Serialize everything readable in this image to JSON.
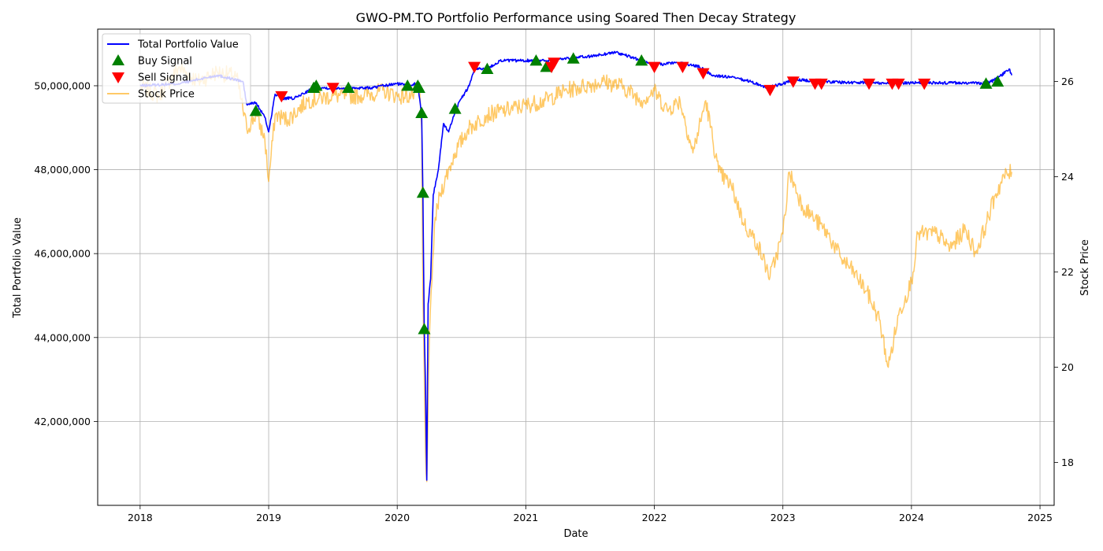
{
  "chart_data": {
    "type": "line",
    "title": "GWO-PM.TO Portfolio Performance using Soared Then Decay Strategy",
    "xlabel": "Date",
    "ylabel": "Total Portfolio Value",
    "ylabel_right": "Stock Price",
    "xlim": [
      2017.67,
      2025.11
    ],
    "ylim_left": [
      40000000,
      51350000
    ],
    "ylim_right": [
      17.1,
      27.1
    ],
    "x_ticks": [
      2018,
      2019,
      2020,
      2021,
      2022,
      2023,
      2024,
      2025
    ],
    "x_tick_labels": [
      "2018",
      "2019",
      "2020",
      "2021",
      "2022",
      "2023",
      "2024",
      "2025"
    ],
    "y_left_ticks": [
      42000000,
      44000000,
      46000000,
      48000000,
      50000000
    ],
    "y_left_tick_labels": [
      "42,000,000",
      "44,000,000",
      "46,000,000",
      "48,000,000",
      "50,000,000"
    ],
    "y_right_ticks": [
      18,
      20,
      22,
      24,
      26
    ],
    "y_right_tick_labels": [
      "18",
      "20",
      "22",
      "24",
      "26"
    ],
    "grid": true,
    "legend_position": "top-left",
    "colors": {
      "portfolio": "#0000ff",
      "price": "#ffa500",
      "buy": "#008000",
      "sell": "#ff0000"
    },
    "series": [
      {
        "name": "Total Portfolio Value",
        "axis": "left",
        "color": "#0000ff",
        "points": [
          [
            2018.0,
            50000000
          ],
          [
            2018.3,
            50050000
          ],
          [
            2018.6,
            50250000
          ],
          [
            2018.8,
            50100000
          ],
          [
            2018.83,
            49550000
          ],
          [
            2018.9,
            49600000
          ],
          [
            2018.97,
            49250000
          ],
          [
            2019.0,
            48900000
          ],
          [
            2019.05,
            49800000
          ],
          [
            2019.1,
            49700000
          ],
          [
            2019.2,
            49700000
          ],
          [
            2019.35,
            49950000
          ],
          [
            2019.5,
            49950000
          ],
          [
            2019.6,
            49950000
          ],
          [
            2019.8,
            49950000
          ],
          [
            2019.9,
            50000000
          ],
          [
            2020.0,
            50050000
          ],
          [
            2020.08,
            50020000
          ],
          [
            2020.16,
            50050000
          ],
          [
            2020.19,
            49300000
          ],
          [
            2020.2,
            47400000
          ],
          [
            2020.21,
            44200000
          ],
          [
            2020.22,
            42800000
          ],
          [
            2020.23,
            40600000
          ],
          [
            2020.24,
            44800000
          ],
          [
            2020.26,
            45400000
          ],
          [
            2020.28,
            47400000
          ],
          [
            2020.32,
            48000000
          ],
          [
            2020.36,
            49100000
          ],
          [
            2020.4,
            48900000
          ],
          [
            2020.45,
            49400000
          ],
          [
            2020.5,
            49700000
          ],
          [
            2020.56,
            50000000
          ],
          [
            2020.6,
            50400000
          ],
          [
            2020.7,
            50400000
          ],
          [
            2020.8,
            50600000
          ],
          [
            2021.0,
            50600000
          ],
          [
            2021.15,
            50600000
          ],
          [
            2021.3,
            50650000
          ],
          [
            2021.5,
            50700000
          ],
          [
            2021.7,
            50800000
          ],
          [
            2021.9,
            50600000
          ],
          [
            2022.0,
            50500000
          ],
          [
            2022.2,
            50550000
          ],
          [
            2022.35,
            50450000
          ],
          [
            2022.45,
            50250000
          ],
          [
            2022.6,
            50200000
          ],
          [
            2022.75,
            50100000
          ],
          [
            2022.88,
            49950000
          ],
          [
            2023.0,
            50050000
          ],
          [
            2023.1,
            50150000
          ],
          [
            2023.3,
            50100000
          ],
          [
            2023.5,
            50080000
          ],
          [
            2023.7,
            50070000
          ],
          [
            2024.0,
            50070000
          ],
          [
            2024.3,
            50070000
          ],
          [
            2024.58,
            50060000
          ],
          [
            2024.62,
            50100000
          ],
          [
            2024.7,
            50250000
          ],
          [
            2024.76,
            50400000
          ],
          [
            2024.78,
            50250000
          ]
        ]
      },
      {
        "name": "Stock Price",
        "axis": "right",
        "color": "#ffa500",
        "points": [
          [
            2018.0,
            25.9
          ],
          [
            2018.15,
            25.7
          ],
          [
            2018.3,
            26.3
          ],
          [
            2018.45,
            26.0
          ],
          [
            2018.6,
            26.2
          ],
          [
            2018.75,
            26.1
          ],
          [
            2018.83,
            25.0
          ],
          [
            2018.9,
            25.3
          ],
          [
            2018.97,
            24.8
          ],
          [
            2019.0,
            23.9
          ],
          [
            2019.05,
            25.3
          ],
          [
            2019.15,
            25.2
          ],
          [
            2019.3,
            25.6
          ],
          [
            2019.5,
            25.7
          ],
          [
            2019.7,
            25.7
          ],
          [
            2019.9,
            25.8
          ],
          [
            2020.0,
            25.7
          ],
          [
            2020.12,
            25.7
          ],
          [
            2020.17,
            25.9
          ],
          [
            2020.19,
            25.0
          ],
          [
            2020.2,
            21.5
          ],
          [
            2020.22,
            18.2
          ],
          [
            2020.23,
            17.6
          ],
          [
            2020.25,
            20.6
          ],
          [
            2020.27,
            21.8
          ],
          [
            2020.29,
            23.0
          ],
          [
            2020.33,
            23.6
          ],
          [
            2020.38,
            24.0
          ],
          [
            2020.45,
            24.5
          ],
          [
            2020.55,
            25.0
          ],
          [
            2020.7,
            25.3
          ],
          [
            2020.85,
            25.4
          ],
          [
            2021.0,
            25.5
          ],
          [
            2021.15,
            25.6
          ],
          [
            2021.3,
            25.8
          ],
          [
            2021.45,
            25.9
          ],
          [
            2021.6,
            26.0
          ],
          [
            2021.75,
            25.9
          ],
          [
            2021.9,
            25.6
          ],
          [
            2022.0,
            25.8
          ],
          [
            2022.1,
            25.4
          ],
          [
            2022.2,
            25.6
          ],
          [
            2022.3,
            24.5
          ],
          [
            2022.4,
            25.6
          ],
          [
            2022.5,
            24.1
          ],
          [
            2022.6,
            23.8
          ],
          [
            2022.7,
            23.0
          ],
          [
            2022.8,
            22.6
          ],
          [
            2022.9,
            21.9
          ],
          [
            2023.0,
            22.8
          ],
          [
            2023.05,
            24.1
          ],
          [
            2023.15,
            23.4
          ],
          [
            2023.25,
            23.1
          ],
          [
            2023.35,
            22.8
          ],
          [
            2023.45,
            22.3
          ],
          [
            2023.55,
            22.0
          ],
          [
            2023.65,
            21.6
          ],
          [
            2023.75,
            21.0
          ],
          [
            2023.82,
            20.0
          ],
          [
            2023.9,
            21.1
          ],
          [
            2024.0,
            21.8
          ],
          [
            2024.05,
            22.8
          ],
          [
            2024.2,
            22.8
          ],
          [
            2024.3,
            22.5
          ],
          [
            2024.42,
            22.9
          ],
          [
            2024.5,
            22.4
          ],
          [
            2024.58,
            23.0
          ],
          [
            2024.65,
            23.6
          ],
          [
            2024.72,
            24.0
          ],
          [
            2024.78,
            24.1
          ]
        ]
      }
    ],
    "buy_signals": [
      [
        2018.9,
        49400000
      ],
      [
        2019.35,
        49950000
      ],
      [
        2019.37,
        50000000
      ],
      [
        2019.62,
        49950000
      ],
      [
        2020.08,
        50000000
      ],
      [
        2020.16,
        50000000
      ],
      [
        2020.17,
        49950000
      ],
      [
        2020.19,
        49350000
      ],
      [
        2020.2,
        47450000
      ],
      [
        2020.21,
        44200000
      ],
      [
        2020.45,
        49450000
      ],
      [
        2020.7,
        50400000
      ],
      [
        2021.08,
        50600000
      ],
      [
        2021.16,
        50450000
      ],
      [
        2021.37,
        50650000
      ],
      [
        2021.9,
        50600000
      ],
      [
        2024.58,
        50050000
      ],
      [
        2024.67,
        50100000
      ]
    ],
    "sell_signals": [
      [
        2019.1,
        49750000
      ],
      [
        2019.5,
        49950000
      ],
      [
        2020.6,
        50450000
      ],
      [
        2021.2,
        50450000
      ],
      [
        2021.22,
        50550000
      ],
      [
        2022.0,
        50450000
      ],
      [
        2022.22,
        50450000
      ],
      [
        2022.38,
        50300000
      ],
      [
        2022.9,
        49900000
      ],
      [
        2023.08,
        50100000
      ],
      [
        2023.25,
        50050000
      ],
      [
        2023.3,
        50050000
      ],
      [
        2023.67,
        50050000
      ],
      [
        2023.85,
        50050000
      ],
      [
        2023.9,
        50050000
      ],
      [
        2024.1,
        50050000
      ]
    ],
    "legend": [
      {
        "label": "Total Portfolio Value",
        "kind": "line",
        "color": "#0000ff"
      },
      {
        "label": "Buy Signal",
        "kind": "triangle-up",
        "color": "#008000"
      },
      {
        "label": "Sell Signal",
        "kind": "triangle-down",
        "color": "#ff0000"
      },
      {
        "label": "Stock Price",
        "kind": "line",
        "color": "#ffa500"
      }
    ]
  }
}
